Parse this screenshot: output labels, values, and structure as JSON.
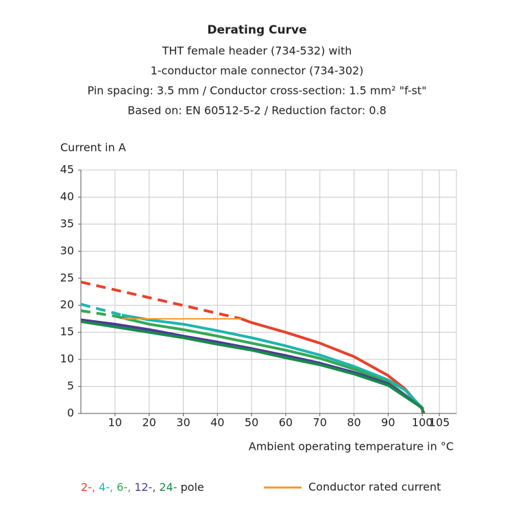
{
  "chart_data": {
    "type": "line",
    "title": "Derating Curve",
    "subtitle": [
      "THT female header (734-532) with",
      "1-conductor male connector (734-302)",
      "Pin spacing: 3.5 mm / Conductor cross-section: 1.5 mm² \"f-st\"",
      "Based on: EN 60512-5-2 / Reduction factor: 0.8"
    ],
    "y_label": "Current in A",
    "x_label": "Ambient operating temperature in °C",
    "xlim": [
      0,
      110
    ],
    "ylim": [
      0,
      45
    ],
    "xticks": [
      10,
      20,
      30,
      40,
      50,
      60,
      70,
      80,
      90,
      100,
      105
    ],
    "yticks": [
      0,
      5,
      10,
      15,
      20,
      25,
      30,
      35,
      40,
      45
    ],
    "grid": true,
    "legend_suffix": "pole",
    "series": [
      {
        "name": "2-,",
        "color": "#e8412c",
        "dashed": {
          "x": [
            0,
            47
          ],
          "values": [
            24.3,
            17.5
          ]
        },
        "x": [
          47,
          50,
          60,
          70,
          80,
          90,
          95,
          100,
          100.5
        ],
        "values": [
          17.5,
          16.8,
          15,
          13,
          10.5,
          7,
          4.5,
          0.8,
          0
        ]
      },
      {
        "name": "4-,",
        "color": "#1fb5b0",
        "dashed": {
          "x": [
            0,
            12
          ],
          "values": [
            20.2,
            18.2
          ]
        },
        "x": [
          12,
          20,
          30,
          40,
          50,
          60,
          70,
          80,
          90,
          95,
          100,
          100.2
        ],
        "values": [
          18.2,
          17.3,
          16.5,
          15.3,
          14,
          12.5,
          10.8,
          8.7,
          6.2,
          4.3,
          1,
          0
        ]
      },
      {
        "name": "6-,",
        "color": "#35a853",
        "dashed": {
          "x": [
            0,
            10
          ],
          "values": [
            19,
            18
          ]
        },
        "x": [
          10,
          20,
          30,
          40,
          50,
          60,
          70,
          80,
          90,
          100,
          100.2
        ],
        "values": [
          18,
          16.5,
          15.5,
          14.3,
          13,
          11.7,
          10.2,
          8.2,
          5.8,
          1,
          0
        ]
      },
      {
        "name": "12-,",
        "color": "#4b3a96",
        "x": [
          0,
          10,
          20,
          30,
          40,
          50,
          60,
          70,
          80,
          90,
          100,
          100.2
        ],
        "values": [
          17.3,
          16.5,
          15.5,
          14.3,
          13.2,
          12,
          10.7,
          9.3,
          7.6,
          5.5,
          1,
          0
        ]
      },
      {
        "name": "24-",
        "color": "#1a8a4a",
        "x": [
          0,
          10,
          20,
          30,
          40,
          50,
          60,
          70,
          80,
          90,
          100,
          100.2
        ],
        "values": [
          17,
          16,
          15,
          14,
          12.8,
          11.7,
          10.3,
          9,
          7.3,
          5.2,
          1,
          0
        ]
      },
      {
        "name": "Conductor rated current",
        "color": "#f39a2a",
        "x": [
          12,
          47
        ],
        "values": [
          17.5,
          17.5
        ]
      }
    ]
  }
}
